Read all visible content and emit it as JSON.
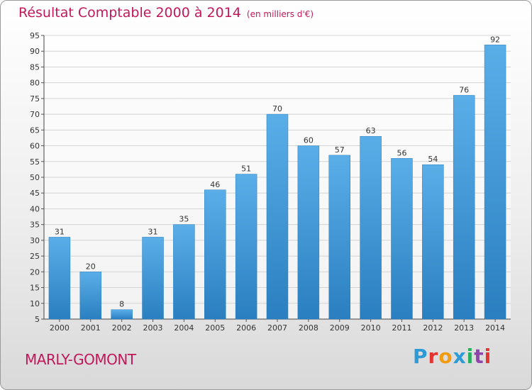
{
  "title": "Résultat Comptable 2000 à 2014",
  "subtitle": "(en milliers d'€)",
  "commune": "MARLY-GOMONT",
  "logo": {
    "text": "Proxiti",
    "letters": [
      {
        "ch": "P",
        "color": "#2e9bd6"
      },
      {
        "ch": "r",
        "color": "#e3342f"
      },
      {
        "ch": "o",
        "color": "#f39c12"
      },
      {
        "ch": "x",
        "color": "#2e9bd6"
      },
      {
        "ch": "i",
        "color": "#27ae60"
      },
      {
        "ch": "t",
        "color": "#8e44ad"
      },
      {
        "ch": "i",
        "color": "#e3342f"
      }
    ]
  },
  "colors": {
    "title": "#c2185b",
    "bar_light": "#5aaee8",
    "bar_dark": "#2a7fc0"
  },
  "chart_data": {
    "type": "bar",
    "categories": [
      "2000",
      "2001",
      "2002",
      "2003",
      "2004",
      "2005",
      "2006",
      "2007",
      "2008",
      "2009",
      "2010",
      "2011",
      "2012",
      "2013",
      "2014"
    ],
    "values": [
      31,
      20,
      8,
      31,
      35,
      46,
      51,
      70,
      60,
      57,
      63,
      56,
      54,
      76,
      92
    ],
    "yticks": [
      5,
      10,
      15,
      20,
      25,
      30,
      35,
      40,
      45,
      50,
      55,
      60,
      65,
      70,
      75,
      80,
      85,
      90,
      95
    ],
    "ylim": [
      5,
      95
    ],
    "grid": true,
    "data_labels": true
  }
}
